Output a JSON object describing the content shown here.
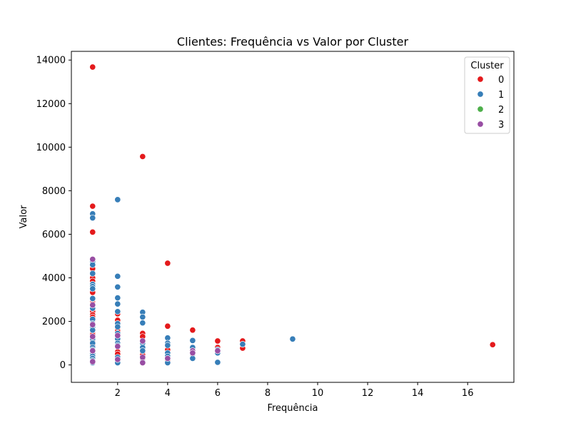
{
  "chart_data": {
    "type": "scatter",
    "title": "Clientes: Frequência vs Valor por Cluster",
    "xlabel": "Frequência",
    "ylabel": "Valor",
    "xlim": [
      0.15,
      17.85
    ],
    "ylim": [
      -800,
      14400
    ],
    "xticks": [
      2,
      4,
      6,
      8,
      10,
      12,
      14,
      16
    ],
    "yticks": [
      0,
      2000,
      4000,
      6000,
      8000,
      10000,
      12000,
      14000
    ],
    "grid": false,
    "legend": {
      "title": "Cluster",
      "placement": "top-right"
    },
    "series": [
      {
        "name": "0",
        "color": "#e41a1c",
        "points": [
          [
            1,
            13680
          ],
          [
            1,
            7290
          ],
          [
            1,
            6100
          ],
          [
            1,
            4500
          ],
          [
            1,
            4420
          ],
          [
            1,
            4000
          ],
          [
            1,
            3850
          ],
          [
            1,
            3700
          ],
          [
            1,
            3400
          ],
          [
            1,
            3330
          ],
          [
            1,
            2880
          ],
          [
            1,
            2800
          ],
          [
            1,
            2450
          ],
          [
            1,
            2300
          ],
          [
            1,
            2200
          ],
          [
            1,
            2050
          ],
          [
            1,
            1700
          ],
          [
            1,
            1450
          ],
          [
            1,
            1380
          ],
          [
            1,
            1100
          ],
          [
            1,
            900
          ],
          [
            1,
            600
          ],
          [
            2,
            2350
          ],
          [
            2,
            2050
          ],
          [
            2,
            1650
          ],
          [
            2,
            1550
          ],
          [
            2,
            600
          ],
          [
            2,
            500
          ],
          [
            3,
            9570
          ],
          [
            3,
            1450
          ],
          [
            3,
            1300
          ],
          [
            3,
            550
          ],
          [
            3,
            450
          ],
          [
            3,
            280
          ],
          [
            4,
            4670
          ],
          [
            4,
            1780
          ],
          [
            4,
            700
          ],
          [
            4,
            200
          ],
          [
            5,
            1600
          ],
          [
            6,
            1100
          ],
          [
            6,
            800
          ],
          [
            7,
            1100
          ],
          [
            7,
            770
          ],
          [
            17,
            930
          ]
        ]
      },
      {
        "name": "1",
        "color": "#377eb8",
        "points": [
          [
            1,
            6940
          ],
          [
            1,
            6750
          ],
          [
            1,
            4750
          ],
          [
            1,
            4600
          ],
          [
            1,
            4200
          ],
          [
            1,
            3700
          ],
          [
            1,
            3600
          ],
          [
            1,
            3500
          ],
          [
            1,
            3050
          ],
          [
            1,
            2650
          ],
          [
            1,
            2600
          ],
          [
            1,
            2100
          ],
          [
            1,
            1900
          ],
          [
            1,
            1750
          ],
          [
            1,
            1600
          ],
          [
            1,
            1200
          ],
          [
            1,
            1000
          ],
          [
            1,
            800
          ],
          [
            1,
            700
          ],
          [
            1,
            500
          ],
          [
            1,
            400
          ],
          [
            1,
            300
          ],
          [
            1,
            200
          ],
          [
            1,
            100
          ],
          [
            2,
            7590
          ],
          [
            2,
            4070
          ],
          [
            2,
            3580
          ],
          [
            2,
            3080
          ],
          [
            2,
            2800
          ],
          [
            2,
            2450
          ],
          [
            2,
            1900
          ],
          [
            2,
            1750
          ],
          [
            2,
            1450
          ],
          [
            2,
            1200
          ],
          [
            2,
            1000
          ],
          [
            2,
            900
          ],
          [
            2,
            350
          ],
          [
            2,
            100
          ],
          [
            3,
            2420
          ],
          [
            3,
            2200
          ],
          [
            3,
            1930
          ],
          [
            3,
            1000
          ],
          [
            3,
            800
          ],
          [
            3,
            650
          ],
          [
            3,
            150
          ],
          [
            4,
            1240
          ],
          [
            4,
            1000
          ],
          [
            4,
            900
          ],
          [
            4,
            550
          ],
          [
            4,
            400
          ],
          [
            4,
            100
          ],
          [
            5,
            1120
          ],
          [
            5,
            800
          ],
          [
            5,
            500
          ],
          [
            5,
            300
          ],
          [
            6,
            700
          ],
          [
            6,
            550
          ],
          [
            6,
            120
          ],
          [
            7,
            950
          ],
          [
            9,
            1190
          ]
        ]
      },
      {
        "name": "2",
        "color": "#4daf4a",
        "points": []
      },
      {
        "name": "3",
        "color": "#984ea3",
        "points": [
          [
            1,
            4850
          ],
          [
            1,
            2750
          ],
          [
            1,
            1850
          ],
          [
            1,
            1300
          ],
          [
            1,
            650
          ],
          [
            1,
            150
          ],
          [
            2,
            1350
          ],
          [
            2,
            850
          ],
          [
            2,
            250
          ],
          [
            3,
            1100
          ],
          [
            3,
            350
          ],
          [
            3,
            100
          ],
          [
            4,
            300
          ],
          [
            5,
            650
          ],
          [
            5,
            550
          ],
          [
            6,
            650
          ]
        ]
      }
    ]
  }
}
